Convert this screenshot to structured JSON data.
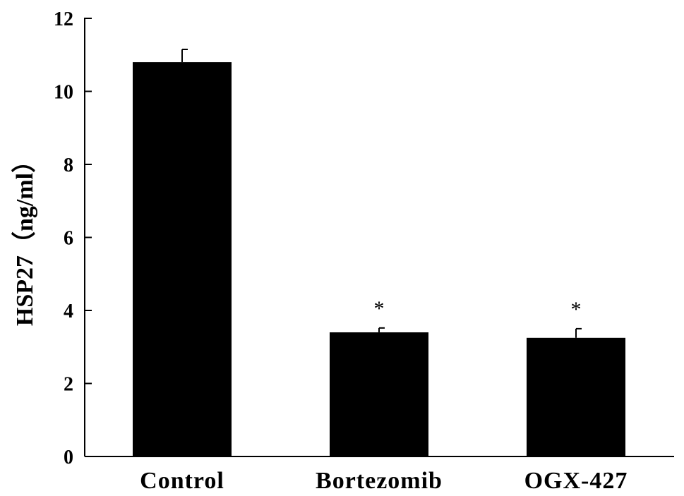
{
  "chart_data": {
    "type": "bar",
    "title": "",
    "xlabel": "",
    "ylabel": "HSP27（ng/ml）",
    "ylim": [
      0,
      12
    ],
    "yticks": [
      0,
      2,
      4,
      6,
      8,
      10,
      12
    ],
    "categories": [
      "Control",
      "Bortezomib",
      "OGX-427"
    ],
    "values": [
      10.8,
      3.4,
      3.25
    ],
    "errors": [
      0.35,
      0.12,
      0.25
    ],
    "annotations": [
      "",
      "*",
      "*"
    ],
    "grid": false,
    "legend": "none",
    "colors": {
      "bar": "#000000",
      "axis": "#000000",
      "background": "#ffffff"
    }
  }
}
